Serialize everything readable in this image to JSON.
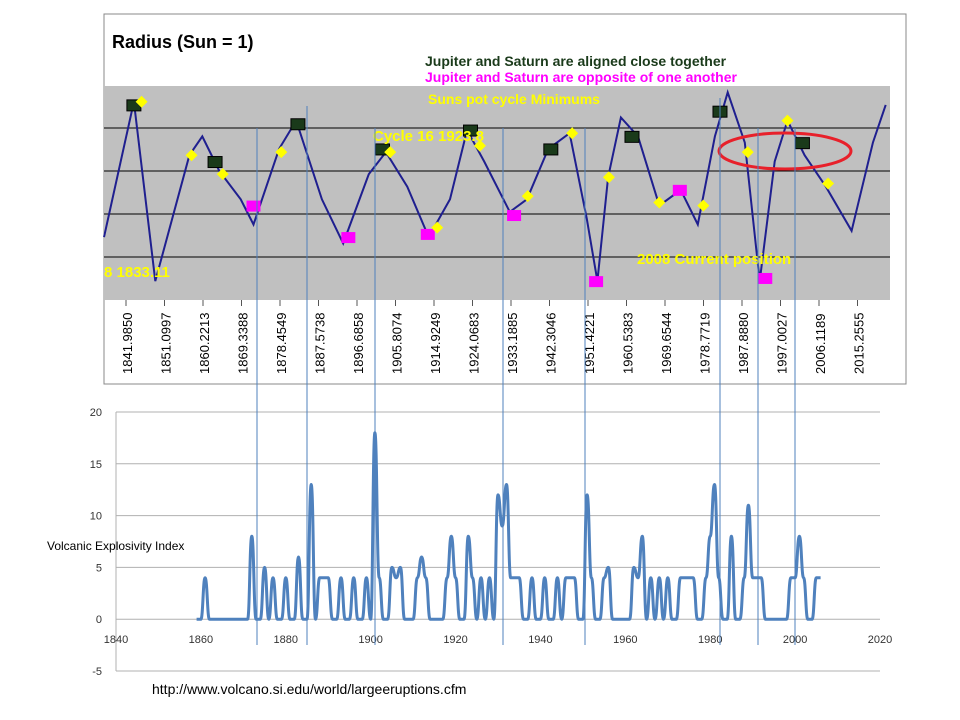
{
  "top_chart": {
    "title": "Radius (Sun = 1)",
    "legend": {
      "aligned": "Jupiter and Saturn are aligned close together",
      "opposite": "Jupiter and Saturn are opposite of one another",
      "minimums": "Suns pot cycle Minimums"
    },
    "annotations": {
      "cycle16": "Cycle  16  1923.8",
      "left_cut": "8  1833.11",
      "current": "2008  Current position"
    },
    "x_tick_labels": [
      "1841.9850",
      "1851.0997",
      "1860.2213",
      "1869.3388",
      "1878.4549",
      "1887.5738",
      "1896.6858",
      "1905.8074",
      "1914.9249",
      "1924.0683",
      "1933.1885",
      "1942.3046",
      "1951.4221",
      "1960.5383",
      "1969.6544",
      "1978.7719",
      "1987.8880",
      "1997.0027",
      "2006.1189",
      "2015.2555"
    ],
    "colors": {
      "plot_bg": "#c0c0c0",
      "curve": "#1f1f8f",
      "aligned": "#1a3a1a",
      "opposite": "#ff00ff",
      "minimum": "#ffff00",
      "circle": "#e8202a",
      "annotation": "#ffff00"
    }
  },
  "chart_data": [
    {
      "type": "line",
      "title": "Radius (Sun = 1)",
      "x_range": [
        1836,
        2020
      ],
      "gridlines": 4,
      "series": [
        {
          "name": "Jupiter and Saturn are aligned close together",
          "marker": "square",
          "x": [
            1843.0,
            1862.0,
            1881.4,
            1901.2,
            1921.8,
            1940.6,
            1959.6,
            1980.2,
            1999.5
          ],
          "y": [
            3.1,
            2.2,
            2.8,
            2.4,
            2.7,
            2.4,
            2.6,
            3.0,
            2.5
          ]
        },
        {
          "name": "Jupiter and Saturn are opposite of one another",
          "marker": "square",
          "x": [
            1871.0,
            1893.2,
            1911.8,
            1932.0,
            1951.2,
            1970.8,
            1990.8
          ],
          "y": [
            1.5,
            1.0,
            1.05,
            1.35,
            0.3,
            1.75,
            0.35
          ]
        },
        {
          "name": "Suns pot cycle Minimums",
          "marker": "diamond",
          "x": [
            1844.8,
            1856.5,
            1863.8,
            1877.5,
            1903.0,
            1914.0,
            1924.0,
            1935.2,
            1945.6,
            1954.2,
            1966.0,
            1976.3,
            1986.7,
            1996.0,
            2005.5
          ],
          "y": [
            3.15,
            2.3,
            2.0,
            2.35,
            2.35,
            1.15,
            2.45,
            1.65,
            2.65,
            1.95,
            1.55,
            1.5,
            2.35,
            2.85,
            1.85
          ]
        }
      ]
    },
    {
      "type": "line",
      "title": "",
      "ylabel": "Volcanic  Explosivity Index",
      "xlim": [
        1840,
        2020
      ],
      "ylim": [
        -5,
        20
      ],
      "x_ticks": [
        1840,
        1860,
        1880,
        1900,
        1920,
        1940,
        1960,
        1980,
        2000,
        2020
      ],
      "y_ticks": [
        -5,
        0,
        5,
        10,
        15,
        20
      ],
      "grid": "horizontal",
      "series": [
        {
          "name": "",
          "color": "#4f81bd",
          "x": [
            1859,
            1860,
            1861,
            1862,
            1863,
            1869,
            1870,
            1871,
            1872,
            1873,
            1874,
            1875,
            1876,
            1877,
            1878,
            1879,
            1880,
            1881,
            1882,
            1883,
            1884,
            1885,
            1886,
            1887,
            1888,
            1889,
            1890,
            1891,
            1892,
            1893,
            1894,
            1895,
            1896,
            1897,
            1898,
            1899,
            1900,
            1901,
            1902,
            1903,
            1904,
            1905,
            1906,
            1907,
            1908,
            1909,
            1910,
            1911,
            1912,
            1913,
            1914,
            1915,
            1916,
            1917,
            1918,
            1919,
            1920,
            1921,
            1922,
            1923,
            1924,
            1925,
            1926,
            1927,
            1928,
            1929,
            1930,
            1931,
            1932,
            1933,
            1934,
            1935,
            1936,
            1937,
            1938,
            1939,
            1940,
            1941,
            1942,
            1943,
            1944,
            1945,
            1946,
            1947,
            1948,
            1949,
            1950,
            1951,
            1952,
            1953,
            1954,
            1955,
            1956,
            1957,
            1958,
            1959,
            1960,
            1961,
            1962,
            1963,
            1964,
            1965,
            1966,
            1967,
            1968,
            1969,
            1970,
            1971,
            1972,
            1973,
            1974,
            1975,
            1976,
            1977,
            1978,
            1979,
            1980,
            1981,
            1982,
            1983,
            1984,
            1985,
            1986,
            1987,
            1988,
            1989,
            1990,
            1991,
            1992,
            1993,
            1994,
            1995,
            1996,
            1997,
            1998,
            1999,
            2000,
            2001,
            2002,
            2003,
            2004,
            2005,
            2006
          ],
          "y": [
            0,
            0,
            4,
            0,
            0,
            0,
            0,
            0,
            8,
            0,
            0,
            5,
            0,
            4,
            0,
            0,
            4,
            0,
            0,
            6,
            0,
            0,
            13,
            0,
            4,
            4,
            4,
            0,
            0,
            4,
            0,
            0,
            4,
            0,
            0,
            4,
            0,
            18,
            4,
            0,
            0,
            5,
            4,
            5,
            0,
            0,
            0,
            4,
            6,
            4,
            0,
            0,
            0,
            0,
            4,
            8,
            4,
            0,
            0,
            8,
            4,
            0,
            4,
            0,
            4,
            0,
            12,
            9,
            13,
            4,
            4,
            4,
            0,
            0,
            4,
            0,
            0,
            4,
            0,
            0,
            4,
            0,
            4,
            4,
            4,
            0,
            0,
            12,
            4,
            0,
            0,
            4,
            5,
            0,
            0,
            0,
            0,
            0,
            5,
            4,
            8,
            0,
            4,
            0,
            4,
            0,
            4,
            0,
            0,
            4,
            4,
            4,
            4,
            0,
            0,
            4,
            8,
            13,
            4,
            0,
            0,
            8,
            0,
            0,
            4,
            11,
            4,
            4,
            4,
            0,
            0,
            0,
            0,
            0,
            0,
            4,
            4,
            8,
            4,
            0,
            0,
            4,
            4
          ]
        }
      ]
    }
  ],
  "source": "http://www.volcano.si.edu/world/largeeruptions.cfm"
}
